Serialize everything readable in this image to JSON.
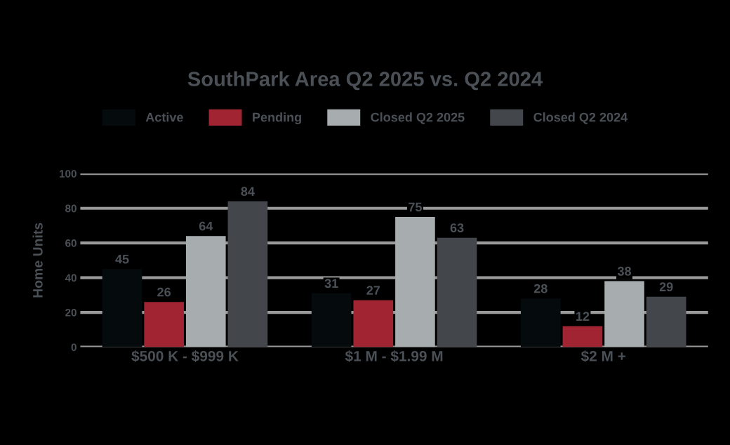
{
  "chart_data": {
    "type": "bar",
    "title": "SouthPark Area Q2 2025 vs. Q2 2024",
    "ylabel": "Home Units",
    "categories": [
      "$500 K - $999 K",
      "$1 M - $1.99 M",
      "$2 M +"
    ],
    "series": [
      {
        "name": "Active",
        "color": "#050a0c",
        "values": [
          45,
          31,
          28
        ]
      },
      {
        "name": "Pending",
        "color": "#a02432",
        "values": [
          26,
          27,
          12
        ]
      },
      {
        "name": "Closed Q2 2025",
        "color": "#a7acaf",
        "values": [
          64,
          75,
          38
        ]
      },
      {
        "name": "Closed Q2 2024",
        "color": "#43474b",
        "values": [
          84,
          63,
          29
        ]
      }
    ],
    "ylim": [
      0,
      100
    ],
    "yticks": [
      0,
      20,
      40,
      60,
      80,
      100
    ],
    "grid": "y",
    "legend": "top",
    "data_labels": true
  }
}
